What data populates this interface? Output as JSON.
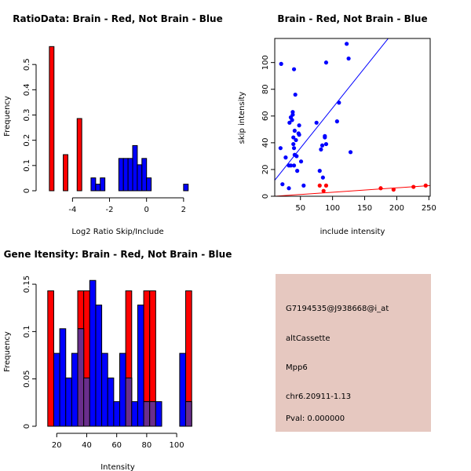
{
  "colors": {
    "brain": "#ff0000",
    "not_brain": "#0000ff",
    "overlap": "#6a2e8c",
    "info_bg": "#e6c8c0",
    "pval": "#8b0000"
  },
  "chart_data": [
    {
      "id": "ratio",
      "type": "bar",
      "title": "RatioData: Brain - Red, Not Brain - Blue",
      "xlabel": "Log2 Ratio Skip/Include",
      "ylabel": "Frequency",
      "xlim": [
        -5.5,
        2.6
      ],
      "ylim": [
        0,
        0.6
      ],
      "xticks": [
        -4,
        -2,
        0,
        2
      ],
      "yticks": [
        0,
        0.1,
        0.2,
        0.3,
        0.4,
        0.5
      ],
      "bin_width": 0.25,
      "series": [
        {
          "name": "Brain",
          "color_key": "brain",
          "bars": [
            {
              "x0": -5.25,
              "value": 0.571
            },
            {
              "x0": -4.5,
              "value": 0.143
            },
            {
              "x0": -3.75,
              "value": 0.286
            }
          ]
        },
        {
          "name": "Not Brain",
          "color_key": "not_brain",
          "bars": [
            {
              "x0": -3.0,
              "value": 0.051
            },
            {
              "x0": -2.75,
              "value": 0.026
            },
            {
              "x0": -2.5,
              "value": 0.051
            },
            {
              "x0": -1.5,
              "value": 0.128
            },
            {
              "x0": -1.25,
              "value": 0.128
            },
            {
              "x0": -1.0,
              "value": 0.128
            },
            {
              "x0": -0.75,
              "value": 0.179
            },
            {
              "x0": -0.5,
              "value": 0.103
            },
            {
              "x0": -0.25,
              "value": 0.128
            },
            {
              "x0": 0.0,
              "value": 0.051
            },
            {
              "x0": 2.0,
              "value": 0.026
            }
          ]
        }
      ]
    },
    {
      "id": "scatter",
      "type": "scatter",
      "title": "Brain - Red, Not Brain - Blue",
      "xlabel": "include intensity",
      "ylabel": "skip intensity",
      "xlim": [
        10,
        252
      ],
      "ylim": [
        0,
        118
      ],
      "xticks": [
        50,
        100,
        150,
        200,
        250
      ],
      "yticks": [
        0,
        20,
        40,
        60,
        80,
        100
      ],
      "series": [
        {
          "name": "Not Brain",
          "color_key": "not_brain",
          "points": [
            [
              20,
              99
            ],
            [
              19,
              36
            ],
            [
              22,
              9
            ],
            [
              27,
              29
            ],
            [
              32,
              6
            ],
            [
              32,
              23
            ],
            [
              33,
              55
            ],
            [
              35,
              59
            ],
            [
              35,
              23
            ],
            [
              37,
              57
            ],
            [
              38,
              63
            ],
            [
              38,
              61
            ],
            [
              39,
              44
            ],
            [
              39,
              39
            ],
            [
              40,
              23
            ],
            [
              40,
              36
            ],
            [
              41,
              49
            ],
            [
              41,
              31
            ],
            [
              42,
              76
            ],
            [
              43,
              42
            ],
            [
              44,
              30
            ],
            [
              45,
              19
            ],
            [
              47,
              47
            ],
            [
              48,
              53
            ],
            [
              48,
              46
            ],
            [
              51,
              26
            ],
            [
              55,
              8
            ],
            [
              75,
              55
            ],
            [
              80,
              19
            ],
            [
              82,
              35
            ],
            [
              84,
              38
            ],
            [
              85,
              14
            ],
            [
              88,
              45
            ],
            [
              88,
              44
            ],
            [
              90,
              39
            ],
            [
              90,
              100
            ],
            [
              107,
              56
            ],
            [
              110,
              70
            ],
            [
              122,
              114
            ],
            [
              125,
              103
            ],
            [
              128,
              33
            ],
            [
              40,
              95
            ]
          ],
          "fit": [
            [
              10,
              12
            ],
            [
              190,
              120
            ]
          ]
        },
        {
          "name": "Brain",
          "color_key": "brain",
          "points": [
            [
              80,
              8
            ],
            [
              86,
              4
            ],
            [
              90,
              8
            ],
            [
              175,
              6
            ],
            [
              195,
              5
            ],
            [
              226,
              7
            ],
            [
              245,
              8
            ]
          ],
          "fit": [
            [
              10,
              0
            ],
            [
              252,
              8
            ]
          ]
        }
      ]
    },
    {
      "id": "intensity",
      "type": "bar",
      "title": "Gene Itensity: Brain - Red, Not Brain - Blue",
      "xlabel": "Intensity",
      "ylabel": "Frequency",
      "xlim": [
        12,
        112
      ],
      "ylim": [
        0,
        0.16
      ],
      "xticks": [
        20,
        40,
        60,
        80,
        100
      ],
      "yticks": [
        0,
        0.05,
        0.1,
        0.15
      ],
      "bin_width": 4,
      "series": [
        {
          "name": "Brain",
          "color_key": "brain",
          "bars": [
            {
              "x0": 14,
              "value": 0.143
            },
            {
              "x0": 34,
              "value": 0.143
            },
            {
              "x0": 38,
              "value": 0.143
            },
            {
              "x0": 66,
              "value": 0.143
            },
            {
              "x0": 78,
              "value": 0.143
            },
            {
              "x0": 82,
              "value": 0.143
            },
            {
              "x0": 106,
              "value": 0.143
            }
          ]
        },
        {
          "name": "Not Brain",
          "color_key": "not_brain",
          "bars": [
            {
              "x0": 14,
              "value": 0.0
            },
            {
              "x0": 18,
              "value": 0.077
            },
            {
              "x0": 22,
              "value": 0.103
            },
            {
              "x0": 26,
              "value": 0.051
            },
            {
              "x0": 30,
              "value": 0.077
            },
            {
              "x0": 34,
              "value": 0.103
            },
            {
              "x0": 38,
              "value": 0.051
            },
            {
              "x0": 42,
              "value": 0.154
            },
            {
              "x0": 46,
              "value": 0.128
            },
            {
              "x0": 50,
              "value": 0.077
            },
            {
              "x0": 54,
              "value": 0.051
            },
            {
              "x0": 58,
              "value": 0.026
            },
            {
              "x0": 62,
              "value": 0.077
            },
            {
              "x0": 66,
              "value": 0.051
            },
            {
              "x0": 70,
              "value": 0.026
            },
            {
              "x0": 74,
              "value": 0.128
            },
            {
              "x0": 78,
              "value": 0.026
            },
            {
              "x0": 82,
              "value": 0.026
            },
            {
              "x0": 86,
              "value": 0.026
            },
            {
              "x0": 102,
              "value": 0.077
            },
            {
              "x0": 106,
              "value": 0.026
            }
          ]
        }
      ]
    }
  ],
  "info_panel": {
    "probe_id": "G7194535@J938668@i_at",
    "event_type": "altCassette",
    "gene": "Mpp6",
    "location": "chr6.20911-1.13",
    "pval": "Pval: 0.000000"
  }
}
